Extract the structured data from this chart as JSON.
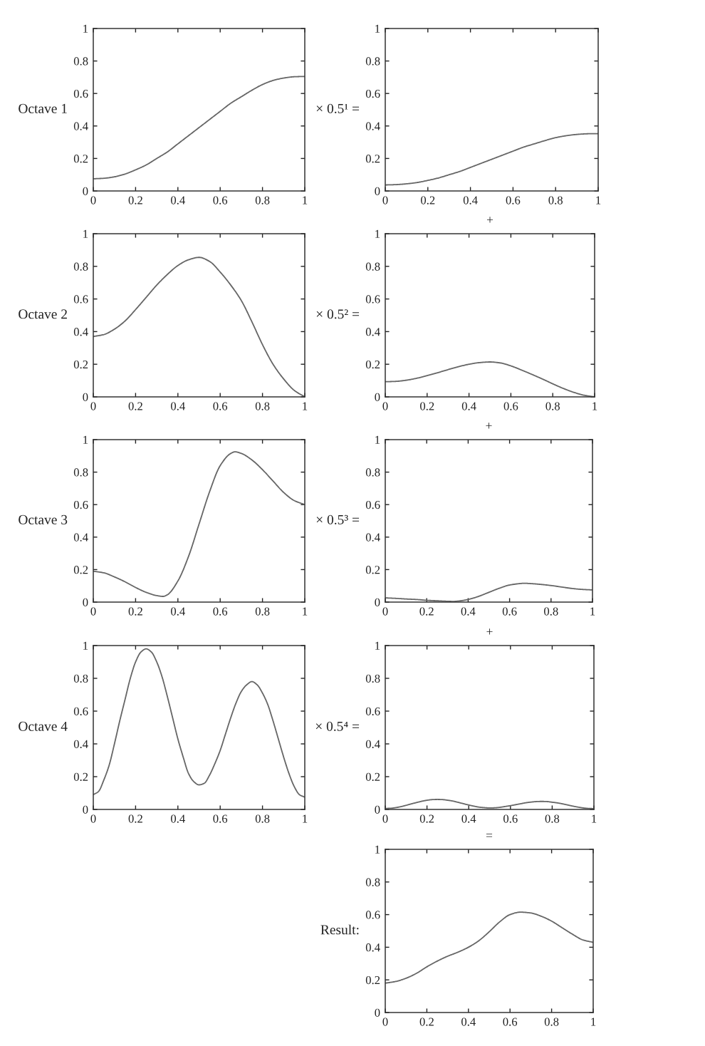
{
  "chart_data": [
    {
      "type": "line",
      "ylabel": "Octave 1",
      "x": [
        0,
        0.05,
        0.1,
        0.15,
        0.2,
        0.25,
        0.3,
        0.35,
        0.4,
        0.45,
        0.5,
        0.55,
        0.6,
        0.65,
        0.7,
        0.75,
        0.8,
        0.85,
        0.9,
        0.95,
        1
      ],
      "series": [
        {
          "color": "#666666",
          "values": [
            0.075,
            0.078,
            0.087,
            0.104,
            0.13,
            0.16,
            0.2,
            0.24,
            0.29,
            0.34,
            0.39,
            0.44,
            0.49,
            0.54,
            0.58,
            0.62,
            0.655,
            0.68,
            0.695,
            0.703,
            0.705
          ]
        }
      ],
      "xlim": [
        0,
        1
      ],
      "ylim": [
        0,
        1
      ],
      "xticks": [
        0,
        0.2,
        0.4,
        0.6,
        0.8,
        1
      ],
      "yticks": [
        0,
        0.2,
        0.4,
        0.6,
        0.8,
        1
      ]
    },
    {
      "type": "line",
      "ylabel": "× 0.5¹ =",
      "x": [
        0,
        0.05,
        0.1,
        0.15,
        0.2,
        0.25,
        0.3,
        0.35,
        0.4,
        0.45,
        0.5,
        0.55,
        0.6,
        0.65,
        0.7,
        0.75,
        0.8,
        0.85,
        0.9,
        0.95,
        1
      ],
      "series": [
        {
          "color": "#666666",
          "values": [
            0.037,
            0.039,
            0.044,
            0.052,
            0.065,
            0.08,
            0.1,
            0.12,
            0.145,
            0.17,
            0.195,
            0.22,
            0.245,
            0.27,
            0.29,
            0.31,
            0.328,
            0.34,
            0.348,
            0.352,
            0.353
          ]
        }
      ],
      "xlim": [
        0,
        1
      ],
      "ylim": [
        0,
        1
      ],
      "xticks": [
        0,
        0.2,
        0.4,
        0.6,
        0.8,
        1
      ],
      "yticks": [
        0,
        0.2,
        0.4,
        0.6,
        0.8,
        1
      ]
    },
    {
      "type": "line",
      "ylabel": "Octave 2",
      "x": [
        0,
        0.05,
        0.1,
        0.15,
        0.2,
        0.25,
        0.3,
        0.35,
        0.4,
        0.45,
        0.5,
        0.55,
        0.6,
        0.65,
        0.7,
        0.75,
        0.8,
        0.85,
        0.9,
        0.95,
        1
      ],
      "series": [
        {
          "color": "#666666",
          "values": [
            0.37,
            0.382,
            0.415,
            0.465,
            0.535,
            0.61,
            0.685,
            0.75,
            0.805,
            0.84,
            0.855,
            0.83,
            0.765,
            0.685,
            0.59,
            0.46,
            0.32,
            0.2,
            0.11,
            0.04,
            0.0
          ]
        }
      ],
      "xlim": [
        0,
        1
      ],
      "ylim": [
        0,
        1
      ],
      "xticks": [
        0,
        0.2,
        0.4,
        0.6,
        0.8,
        1
      ],
      "yticks": [
        0,
        0.2,
        0.4,
        0.6,
        0.8,
        1
      ]
    },
    {
      "type": "line",
      "title": "+",
      "ylabel": "× 0.5² =",
      "x": [
        0,
        0.05,
        0.1,
        0.15,
        0.2,
        0.25,
        0.3,
        0.35,
        0.4,
        0.45,
        0.5,
        0.55,
        0.6,
        0.65,
        0.7,
        0.75,
        0.8,
        0.85,
        0.9,
        0.95,
        1
      ],
      "series": [
        {
          "color": "#666666",
          "values": [
            0.093,
            0.095,
            0.102,
            0.114,
            0.13,
            0.148,
            0.167,
            0.185,
            0.2,
            0.21,
            0.214,
            0.208,
            0.19,
            0.165,
            0.138,
            0.11,
            0.08,
            0.052,
            0.028,
            0.01,
            0.0
          ]
        }
      ],
      "xlim": [
        0,
        1
      ],
      "ylim": [
        0,
        1
      ],
      "xticks": [
        0,
        0.2,
        0.4,
        0.6,
        0.8,
        1
      ],
      "yticks": [
        0,
        0.2,
        0.4,
        0.6,
        0.8,
        1
      ]
    },
    {
      "type": "line",
      "ylabel": "Octave 3",
      "x": [
        0,
        0.05,
        0.1,
        0.15,
        0.2,
        0.25,
        0.3,
        0.33,
        0.35,
        0.4,
        0.45,
        0.5,
        0.55,
        0.6,
        0.65,
        0.67,
        0.7,
        0.75,
        0.8,
        0.85,
        0.9,
        0.95,
        1
      ],
      "series": [
        {
          "color": "#666666",
          "values": [
            0.19,
            0.18,
            0.155,
            0.125,
            0.09,
            0.06,
            0.04,
            0.035,
            0.045,
            0.13,
            0.28,
            0.48,
            0.68,
            0.84,
            0.915,
            0.925,
            0.915,
            0.875,
            0.815,
            0.745,
            0.675,
            0.625,
            0.6
          ]
        }
      ],
      "xlim": [
        0,
        1
      ],
      "ylim": [
        0,
        1
      ],
      "xticks": [
        0,
        0.2,
        0.4,
        0.6,
        0.8,
        1
      ],
      "yticks": [
        0,
        0.2,
        0.4,
        0.6,
        0.8,
        1
      ]
    },
    {
      "type": "line",
      "title": "+",
      "ylabel": "× 0.5³ =",
      "x": [
        0,
        0.05,
        0.1,
        0.15,
        0.2,
        0.25,
        0.3,
        0.33,
        0.35,
        0.4,
        0.45,
        0.5,
        0.55,
        0.6,
        0.65,
        0.67,
        0.7,
        0.75,
        0.8,
        0.85,
        0.9,
        0.95,
        1
      ],
      "series": [
        {
          "color": "#666666",
          "values": [
            0.026,
            0.023,
            0.019,
            0.016,
            0.011,
            0.008,
            0.005,
            0.004,
            0.006,
            0.016,
            0.035,
            0.06,
            0.085,
            0.105,
            0.114,
            0.116,
            0.114,
            0.109,
            0.102,
            0.093,
            0.084,
            0.078,
            0.075
          ]
        }
      ],
      "xlim": [
        0,
        1
      ],
      "ylim": [
        0,
        1
      ],
      "xticks": [
        0,
        0.2,
        0.4,
        0.6,
        0.8,
        1
      ],
      "yticks": [
        0,
        0.2,
        0.4,
        0.6,
        0.8,
        1
      ]
    },
    {
      "type": "line",
      "ylabel": "Octave 4",
      "x": [
        0,
        0.025,
        0.05,
        0.075,
        0.1,
        0.125,
        0.15,
        0.175,
        0.2,
        0.225,
        0.25,
        0.275,
        0.3,
        0.325,
        0.35,
        0.375,
        0.4,
        0.425,
        0.45,
        0.475,
        0.5,
        0.525,
        0.55,
        0.575,
        0.6,
        0.625,
        0.65,
        0.675,
        0.7,
        0.725,
        0.75,
        0.775,
        0.8,
        0.825,
        0.85,
        0.875,
        0.9,
        0.925,
        0.95,
        0.975,
        1
      ],
      "series": [
        {
          "color": "#666666",
          "values": [
            0.09,
            0.11,
            0.18,
            0.27,
            0.4,
            0.54,
            0.67,
            0.8,
            0.9,
            0.96,
            0.98,
            0.96,
            0.9,
            0.81,
            0.69,
            0.56,
            0.43,
            0.32,
            0.22,
            0.17,
            0.15,
            0.16,
            0.21,
            0.28,
            0.36,
            0.46,
            0.56,
            0.65,
            0.72,
            0.76,
            0.78,
            0.76,
            0.71,
            0.64,
            0.54,
            0.43,
            0.32,
            0.22,
            0.14,
            0.09,
            0.075
          ]
        }
      ],
      "xlim": [
        0,
        1
      ],
      "ylim": [
        0,
        1
      ],
      "xticks": [
        0,
        0.2,
        0.4,
        0.6,
        0.8,
        1
      ],
      "yticks": [
        0,
        0.2,
        0.4,
        0.6,
        0.8,
        1
      ]
    },
    {
      "type": "line",
      "title": "+",
      "ylabel": "× 0.5⁴ =",
      "x": [
        0,
        0.025,
        0.05,
        0.075,
        0.1,
        0.125,
        0.15,
        0.175,
        0.2,
        0.225,
        0.25,
        0.275,
        0.3,
        0.325,
        0.35,
        0.375,
        0.4,
        0.425,
        0.45,
        0.475,
        0.5,
        0.525,
        0.55,
        0.575,
        0.6,
        0.625,
        0.65,
        0.675,
        0.7,
        0.725,
        0.75,
        0.775,
        0.8,
        0.825,
        0.85,
        0.875,
        0.9,
        0.925,
        0.95,
        0.975,
        1
      ],
      "series": [
        {
          "color": "#666666",
          "values": [
            0.006,
            0.007,
            0.011,
            0.017,
            0.025,
            0.034,
            0.042,
            0.05,
            0.056,
            0.06,
            0.061,
            0.06,
            0.056,
            0.051,
            0.043,
            0.035,
            0.027,
            0.02,
            0.014,
            0.011,
            0.009,
            0.01,
            0.013,
            0.018,
            0.023,
            0.029,
            0.035,
            0.041,
            0.045,
            0.048,
            0.049,
            0.048,
            0.044,
            0.04,
            0.034,
            0.027,
            0.02,
            0.014,
            0.009,
            0.006,
            0.005
          ]
        }
      ],
      "xlim": [
        0,
        1
      ],
      "ylim": [
        0,
        1
      ],
      "xticks": [
        0,
        0.2,
        0.4,
        0.6,
        0.8,
        1
      ],
      "yticks": [
        0,
        0.2,
        0.4,
        0.6,
        0.8,
        1
      ]
    },
    {
      "type": "line",
      "title": "=",
      "ylabel": "Result:",
      "x": [
        0,
        0.05,
        0.1,
        0.15,
        0.2,
        0.25,
        0.3,
        0.35,
        0.4,
        0.45,
        0.5,
        0.55,
        0.6,
        0.65,
        0.7,
        0.75,
        0.8,
        0.85,
        0.9,
        0.95,
        1
      ],
      "series": [
        {
          "color": "#666666",
          "values": [
            0.18,
            0.19,
            0.21,
            0.24,
            0.28,
            0.315,
            0.345,
            0.37,
            0.4,
            0.44,
            0.495,
            0.555,
            0.6,
            0.615,
            0.61,
            0.59,
            0.56,
            0.52,
            0.48,
            0.445,
            0.43
          ]
        }
      ],
      "xlim": [
        0,
        1
      ],
      "ylim": [
        0,
        1
      ],
      "xticks": [
        0,
        0.2,
        0.4,
        0.6,
        0.8,
        1
      ],
      "yticks": [
        0,
        0.2,
        0.4,
        0.6,
        0.8,
        1
      ]
    }
  ]
}
